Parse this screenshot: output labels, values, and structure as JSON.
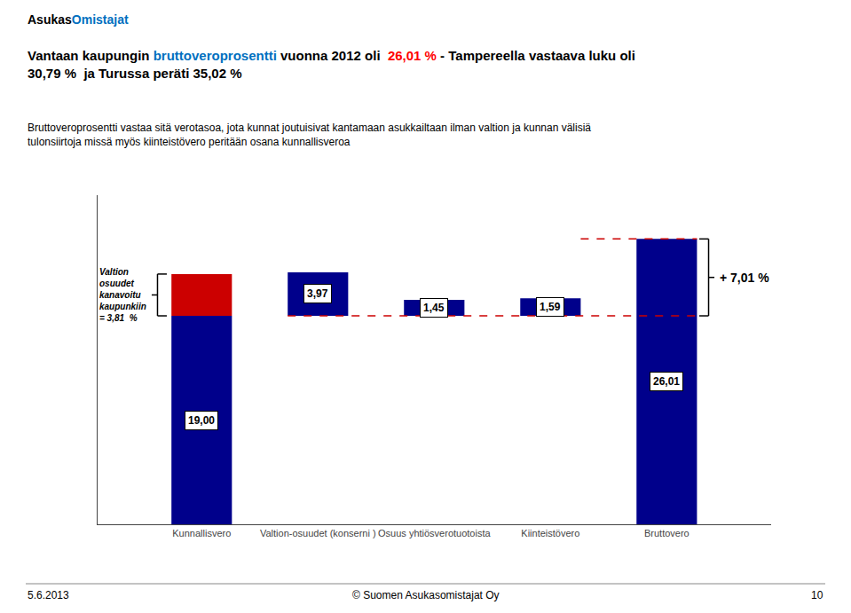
{
  "chart_data": {
    "type": "bar",
    "brand": "AsukasOmistajat",
    "title": "Vantaan kaupungin bruttoveroprosentti vuonna 2012 oli  26,01 % - Tampereella vastaava luku oli\n30,79 %  ja Turussa peräti 35,02 %",
    "highlights": [
      {
        "text": "Omistajat",
        "color": "#0070C0"
      },
      {
        "text": "bruttoveroprosentti",
        "color": "#0070C0"
      },
      {
        "text": "26,01 %",
        "color": "#FF0000"
      }
    ],
    "subtitle": "Bruttoveroprosentti vastaa sitä verotasoa, jota kunnat joutuisivat kantamaan asukkailtaan ilman valtion ja kunnan välisiä\ntulonsiirtoja missä myös kiinteistövero peritään osana kunnallisveroa",
    "categories": [
      "Kunnallisvero",
      "Valtion-osuudet (konserni )",
      "Osuus yhtiösverotuotoista",
      "Kiinteistövero",
      "Bruttovero"
    ],
    "series": [
      {
        "color": "#00008B",
        "values": [
          19.0,
          3.97,
          1.45,
          1.59,
          26.01
        ],
        "base": [
          0,
          19.0,
          19.0,
          19.0,
          0
        ],
        "data_labels": true,
        "value_labels": [
          "19,00",
          "3,97",
          "1,45",
          "1,59",
          "26,01"
        ]
      },
      {
        "color": "#CC0000",
        "values": [
          3.81,
          null,
          null,
          null,
          null
        ],
        "base": [
          19.0,
          null,
          null,
          null,
          null
        ]
      }
    ],
    "reference_lines": [
      {
        "value": 19.0,
        "color": "#CC0000",
        "line_style": "dashed"
      },
      {
        "value": 26.01,
        "color": "#CC0000",
        "line_style": "dashed"
      }
    ],
    "annotations": [
      "Valtion\nosuudet\nkanavoitu\nkaupunkiin\n= 3,81  %",
      "+ 7,01 %"
    ],
    "footer": [
      "5.6.2013",
      "© Suomen Asukasomistajat Oy",
      "10"
    ],
    "ylim": [
      0,
      30
    ],
    "tick_labels": "x",
    "grid": false
  }
}
